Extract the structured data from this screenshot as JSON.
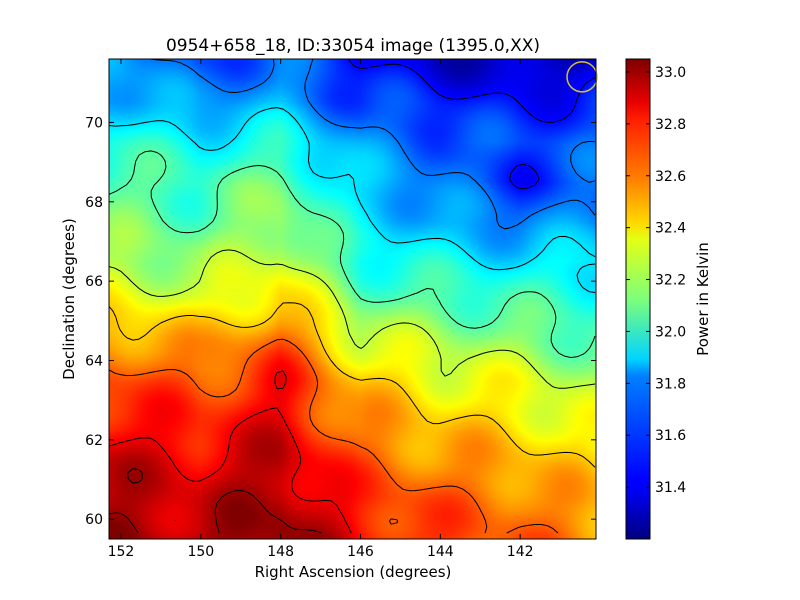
{
  "chart_data": {
    "type": "heatmap",
    "title": "0954+658_18, ID:33054 image (1395.0,XX)",
    "xlabel": "Right Ascension (degrees)",
    "ylabel": "Declination (degrees)",
    "xlim": [
      152.3,
      140.1
    ],
    "ylim": [
      59.5,
      71.6
    ],
    "x_ticks": [
      152,
      150,
      148,
      146,
      144,
      142
    ],
    "y_ticks": [
      60,
      62,
      64,
      66,
      68,
      70
    ],
    "colorbar": {
      "label": "Power in Kelvin",
      "range": [
        31.2,
        33.05
      ],
      "ticks": [
        31.4,
        31.6,
        31.8,
        32.0,
        32.2,
        32.4,
        32.6,
        32.8,
        33.0
      ],
      "colormap": "jet"
    },
    "value_grid": {
      "dec_rows": [
        71.5,
        70.5,
        69.5,
        68.5,
        67.5,
        66.5,
        65.5,
        64.5,
        63.5,
        62.5,
        61.5,
        60.5,
        59.6
      ],
      "ra_cols": [
        152,
        150,
        148,
        146,
        144,
        142,
        140.2
      ],
      "values": [
        [
          31.75,
          31.55,
          31.65,
          31.45,
          31.35,
          31.3,
          31.35
        ],
        [
          31.8,
          31.7,
          31.75,
          31.55,
          31.5,
          31.45,
          31.5
        ],
        [
          31.95,
          31.9,
          31.95,
          31.7,
          31.6,
          31.55,
          31.6
        ],
        [
          32.05,
          32.0,
          32.1,
          31.8,
          31.65,
          31.5,
          31.6
        ],
        [
          32.1,
          32.05,
          32.2,
          31.85,
          31.75,
          31.65,
          31.7
        ],
        [
          32.2,
          32.15,
          32.3,
          31.95,
          31.9,
          31.85,
          31.9
        ],
        [
          32.35,
          32.3,
          32.45,
          32.1,
          32.05,
          32.0,
          31.95
        ],
        [
          32.55,
          32.5,
          32.65,
          32.3,
          32.2,
          32.15,
          32.05
        ],
        [
          32.7,
          32.65,
          32.8,
          32.45,
          32.35,
          32.3,
          32.2
        ],
        [
          32.8,
          32.75,
          32.85,
          32.55,
          32.45,
          32.4,
          32.3
        ],
        [
          32.9,
          32.85,
          32.95,
          32.65,
          32.55,
          32.5,
          32.4
        ],
        [
          32.95,
          32.9,
          33.0,
          32.75,
          32.65,
          32.6,
          32.5
        ],
        [
          33.0,
          32.95,
          33.05,
          32.8,
          32.7,
          32.65,
          32.55
        ]
      ]
    },
    "annotations": [
      {
        "type": "beam-circle",
        "ra": 140.45,
        "dec": 71.15,
        "color": "#d4c13a"
      }
    ]
  }
}
